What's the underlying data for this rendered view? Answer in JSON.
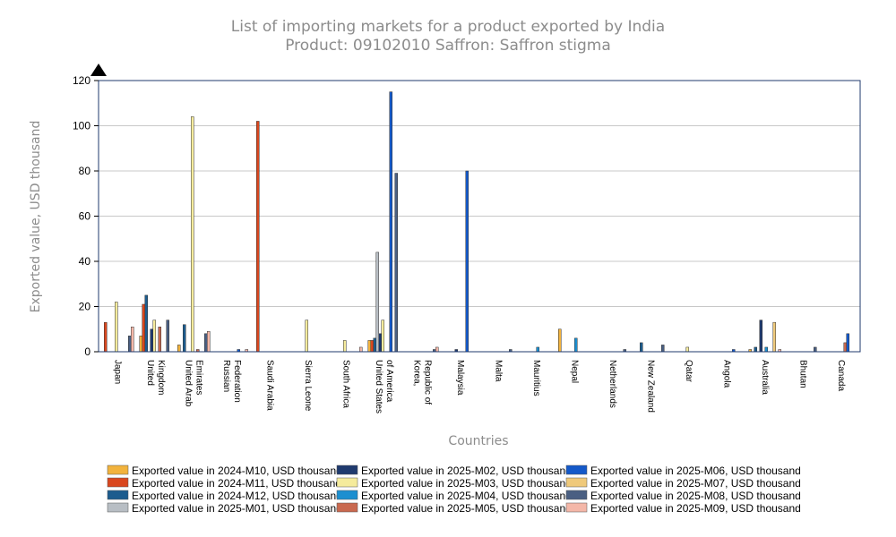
{
  "chart_data": {
    "type": "bar",
    "title": "List of importing markets for a product exported by India",
    "subtitle": "Product: 09102010 Saffron: Saffron stigma",
    "xlabel": "Countries",
    "ylabel": "Exported value, USD thousand",
    "ylim": [
      0,
      120
    ],
    "yticks": [
      0,
      20,
      40,
      60,
      80,
      100,
      120
    ],
    "grid": true,
    "legend_position": "bottom",
    "categories": [
      "Japan",
      "United Kingdom",
      "United Arab Emirates",
      "Russian Federation",
      "Saudi Arabia",
      "Sierra Leone",
      "South Africa",
      "United States of America",
      "Korea, Republic of",
      "Malaysia",
      "Malta",
      "Mauritius",
      "Nepal",
      "Netherlands",
      "New Zealand",
      "Qatar",
      "Angola",
      "Australia",
      "Bhutan",
      "Canada"
    ],
    "category_label_lines": [
      [
        "Japan"
      ],
      [
        "United",
        "Kingdom"
      ],
      [
        "United Arab",
        "Emirates"
      ],
      [
        "Russian",
        "Federation"
      ],
      [
        "Saudi Arabia"
      ],
      [
        "Sierra Leone"
      ],
      [
        "South Africa"
      ],
      [
        "United States",
        "of America"
      ],
      [
        "Korea,",
        "Republic of"
      ],
      [
        "Malaysia"
      ],
      [
        "Malta"
      ],
      [
        "Mauritius"
      ],
      [
        "Nepal"
      ],
      [
        "Netherlands"
      ],
      [
        "New Zealand"
      ],
      [
        "Qatar"
      ],
      [
        "Angola"
      ],
      [
        "Australia"
      ],
      [
        "Bhutan"
      ],
      [
        "Canada"
      ]
    ],
    "series": [
      {
        "name": "Exported value in 2024-M10, USD thousand",
        "color": "#f2b33d",
        "values": [
          0,
          7,
          3,
          0,
          0,
          0,
          0,
          5,
          0,
          0,
          0,
          0,
          10,
          0,
          0,
          0,
          0,
          1,
          0,
          0
        ]
      },
      {
        "name": "Exported value in 2024-M11, USD thousand",
        "color": "#d9471e",
        "values": [
          13,
          21,
          0,
          0,
          102,
          0,
          0,
          5,
          0,
          0,
          0,
          0,
          0,
          0,
          0,
          0,
          0,
          0,
          0,
          0
        ]
      },
      {
        "name": "Exported value in 2024-M12, USD thousand",
        "color": "#1c5c8e",
        "values": [
          0,
          25,
          12,
          0,
          0,
          0,
          0,
          6,
          0,
          0,
          0,
          0,
          0,
          0,
          4,
          0,
          0,
          2,
          0,
          0
        ]
      },
      {
        "name": "Exported value in 2025-M01, USD thousand",
        "color": "#b8bec4",
        "values": [
          0,
          0,
          0,
          0,
          0,
          0,
          0,
          44,
          0,
          0,
          0,
          0,
          0,
          0,
          0,
          0,
          0,
          0,
          0,
          0
        ]
      },
      {
        "name": "Exported value in 2025-M02, USD thousand",
        "color": "#1f3a6e",
        "values": [
          0,
          10,
          0,
          0,
          0,
          0,
          0,
          8,
          0,
          1,
          0,
          0,
          0,
          0,
          0,
          0,
          0,
          14,
          0,
          0
        ]
      },
      {
        "name": "Exported value in 2025-M03, USD thousand",
        "color": "#f5eb9c",
        "values": [
          22,
          14,
          104,
          0,
          0,
          14,
          5,
          14,
          0,
          0,
          0,
          0,
          0,
          0,
          0,
          2,
          0,
          0,
          0,
          0
        ]
      },
      {
        "name": "Exported value in 2025-M04, USD thousand",
        "color": "#1c8fd0",
        "values": [
          0,
          0,
          0,
          0,
          0,
          0,
          0,
          0,
          0,
          0,
          0,
          2,
          6,
          0,
          0,
          0,
          0,
          2,
          0,
          0
        ]
      },
      {
        "name": "Exported value in 2025-M05, USD thousand",
        "color": "#c9694f",
        "values": [
          0,
          11,
          1,
          0,
          0,
          0,
          0,
          0,
          0,
          0,
          0,
          0,
          0,
          0,
          0,
          0,
          0,
          0,
          0,
          4
        ]
      },
      {
        "name": "Exported value in 2025-M06, USD thousand",
        "color": "#1459c9",
        "values": [
          0,
          0,
          0,
          1,
          0,
          0,
          0,
          115,
          0,
          80,
          0,
          0,
          0,
          0,
          0,
          0,
          1,
          0,
          0,
          8
        ]
      },
      {
        "name": "Exported value in 2025-M07, USD thousand",
        "color": "#efc97a",
        "values": [
          0,
          0,
          0,
          0,
          0,
          0,
          0,
          0,
          0,
          0,
          0,
          0,
          0,
          0,
          0,
          0,
          0,
          13,
          0,
          0
        ]
      },
      {
        "name": "Exported value in 2025-M08, USD thousand",
        "color": "#4a5f82",
        "values": [
          7,
          14,
          8,
          0,
          0,
          0,
          0,
          79,
          1,
          0,
          1,
          0,
          0,
          1,
          3,
          0,
          0,
          0,
          2,
          0
        ]
      },
      {
        "name": "Exported value in 2025-M09, USD thousand",
        "color": "#f4b7a8",
        "values": [
          11,
          0,
          9,
          1,
          0,
          0,
          2,
          0,
          2,
          0,
          0,
          0,
          0,
          0,
          0,
          0,
          0,
          1,
          0,
          0
        ]
      }
    ]
  }
}
